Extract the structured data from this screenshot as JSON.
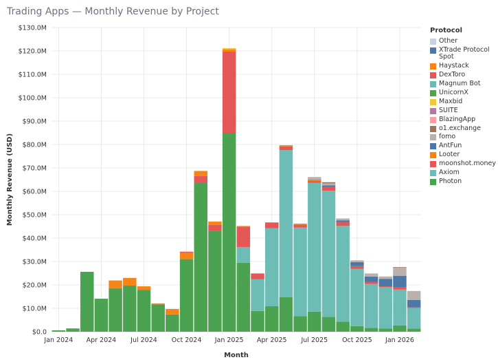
{
  "title": "Trading Apps — Monthly Revenue by Project",
  "chart_data": {
    "type": "bar",
    "stacked": true,
    "title": "Trading Apps — Monthly Revenue by Project",
    "xlabel": "Month",
    "ylabel": "Monthly Revenue (USD)",
    "ylim": [
      0,
      130
    ],
    "yunit": "USD millions",
    "yticks": [
      "$0.0",
      "$10.0M",
      "$20.0M",
      "$30.0M",
      "$40.0M",
      "$50.0M",
      "$60.0M",
      "$70.0M",
      "$80.0M",
      "$90.0M",
      "$100.0M",
      "$110.0M",
      "$120.0M",
      "$130.0M"
    ],
    "xticks": [
      {
        "month": "2024-01",
        "label": "Jan 2024"
      },
      {
        "month": "2024-04",
        "label": "Apr 2024"
      },
      {
        "month": "2024-07",
        "label": "Jul 2024"
      },
      {
        "month": "2024-10",
        "label": "Oct 2024"
      },
      {
        "month": "2025-01",
        "label": "Jan 2025"
      },
      {
        "month": "2025-04",
        "label": "Apr 2025"
      },
      {
        "month": "2025-07",
        "label": "Jul 2025"
      },
      {
        "month": "2025-10",
        "label": "Oct 2025"
      },
      {
        "month": "2026-01",
        "label": "Jan 2026"
      }
    ],
    "grid": true,
    "legend_title": "Protocol",
    "legend_placement": "right",
    "categories": [
      "2024-01",
      "2024-02",
      "2024-03",
      "2024-04",
      "2024-05",
      "2024-06",
      "2024-07",
      "2024-08",
      "2024-09",
      "2024-10",
      "2024-11",
      "2024-12",
      "2025-01",
      "2025-02",
      "2025-03",
      "2025-04",
      "2025-05",
      "2025-06",
      "2025-07",
      "2025-08",
      "2025-09",
      "2025-10",
      "2025-11",
      "2025-12",
      "2026-01",
      "2026-02"
    ],
    "series": [
      {
        "name": "Photon",
        "color": "#4ba351",
        "values": [
          0.6,
          1.4,
          25.6,
          14.1,
          18.6,
          19.7,
          17.8,
          11.6,
          7.4,
          31.0,
          63.8,
          43.2,
          85.0,
          29.5,
          8.9,
          10.9,
          14.8,
          6.7,
          8.6,
          6.3,
          4.3,
          2.4,
          1.6,
          1.4,
          2.7,
          1.3
        ]
      },
      {
        "name": "Axiom",
        "color": "#6dbdb6",
        "values": [
          0,
          0,
          0,
          0,
          0,
          0,
          0,
          0,
          0,
          0,
          0,
          0,
          0,
          6.7,
          13.5,
          33.3,
          62.8,
          37.8,
          55.0,
          53.9,
          40.9,
          24.5,
          18.8,
          17.6,
          15.3,
          8.9
        ]
      },
      {
        "name": "moonshot.money",
        "color": "#e45756",
        "values": [
          0,
          0,
          0,
          0,
          0,
          0,
          0,
          0,
          0,
          0,
          2.7,
          2.5,
          34.7,
          8.5,
          2.5,
          2.5,
          1.6,
          1.2,
          0.8,
          1.7,
          1.7,
          1.1,
          0.8,
          0.4,
          1.0,
          0.2
        ]
      },
      {
        "name": "Looter",
        "color": "#f58518",
        "values": [
          0,
          0,
          0,
          0,
          3.3,
          3.3,
          1.6,
          0.5,
          2.3,
          2.7,
          2.2,
          1.4,
          1.0,
          0.5,
          0,
          0,
          0.5,
          0.5,
          0.6,
          0,
          0,
          0,
          0,
          0,
          0,
          0
        ]
      },
      {
        "name": "AntFun",
        "color": "#4c78a8",
        "values": [
          0,
          0,
          0,
          0,
          0,
          0,
          0,
          0,
          0,
          0,
          0,
          0,
          0,
          0,
          0,
          0,
          0,
          0,
          0,
          0.6,
          0.7,
          1.7,
          2.4,
          3.2,
          4.9,
          3.2
        ]
      },
      {
        "name": "fomo",
        "color": "#bab0ac",
        "values": [
          0,
          0,
          0,
          0,
          0,
          0,
          0,
          0,
          0,
          0,
          0,
          0,
          0,
          0,
          0,
          0,
          0,
          0,
          1.1,
          0.9,
          0.8,
          0.8,
          1.3,
          1.0,
          3.5,
          3.8
        ]
      },
      {
        "name": "o1.exchange",
        "color": "#9d755d",
        "values": [
          0,
          0,
          0,
          0,
          0,
          0,
          0,
          0,
          0,
          0,
          0,
          0,
          0,
          0,
          0,
          0,
          0,
          0,
          0,
          0.5,
          0,
          0,
          0,
          0,
          0.2,
          0
        ]
      },
      {
        "name": "BlazingApp",
        "color": "#ff9da6",
        "values": [
          0,
          0,
          0,
          0,
          0,
          0,
          0,
          0,
          0,
          0,
          0,
          0,
          0,
          0,
          0,
          0,
          0,
          0,
          0,
          0,
          0,
          0,
          0,
          0,
          0,
          0
        ]
      },
      {
        "name": "SUITE",
        "color": "#b279a2",
        "values": [
          0,
          0,
          0,
          0,
          0,
          0,
          0,
          0,
          0,
          0,
          0,
          0,
          0,
          0,
          0,
          0,
          0,
          0,
          0,
          0,
          0,
          0,
          0,
          0,
          0,
          0
        ]
      },
      {
        "name": "Maxbid",
        "color": "#eeca3b",
        "values": [
          0,
          0,
          0,
          0,
          0,
          0,
          0,
          0,
          0,
          0,
          0,
          0,
          0.5,
          0,
          0,
          0,
          0,
          0,
          0,
          0,
          0,
          0,
          0,
          0,
          0,
          0
        ]
      },
      {
        "name": "UnicornX",
        "color": "#54a24b",
        "values": [
          0,
          0,
          0,
          0,
          0,
          0,
          0,
          0,
          0,
          0,
          0,
          0,
          0,
          0,
          0,
          0,
          0,
          0,
          0,
          0,
          0,
          0,
          0,
          0,
          0,
          0
        ]
      },
      {
        "name": "Magnum Bot",
        "color": "#72b7b2",
        "values": [
          0,
          0,
          0,
          0,
          0,
          0,
          0,
          0,
          0,
          0,
          0,
          0,
          0,
          0,
          0,
          0,
          0,
          0,
          0,
          0,
          0,
          0,
          0,
          0,
          0,
          0
        ]
      },
      {
        "name": "DexToro",
        "color": "#e45756",
        "values": [
          0,
          0,
          0,
          0,
          0,
          0,
          0,
          0,
          0,
          0.5,
          0,
          0,
          0,
          0,
          0,
          0,
          0,
          0,
          0,
          0,
          0,
          0,
          0,
          0,
          0,
          0
        ]
      },
      {
        "name": "Haystack",
        "color": "#f58518",
        "values": [
          0,
          0,
          0,
          0,
          0,
          0,
          0,
          0,
          0,
          0,
          0,
          0,
          0,
          0,
          0,
          0,
          0,
          0,
          0,
          0,
          0,
          0,
          0,
          0,
          0,
          0
        ]
      },
      {
        "name": "XTrade Protocol Spot",
        "color": "#4c78a8",
        "values": [
          0,
          0,
          0,
          0,
          0,
          0,
          0,
          0,
          0,
          0,
          0,
          0,
          0,
          0,
          0,
          0,
          0,
          0,
          0,
          0,
          0,
          0,
          0,
          0,
          0,
          0
        ]
      },
      {
        "name": "Other",
        "color": "#c9d2e3",
        "values": [
          0,
          0,
          0,
          0,
          0,
          0,
          0,
          0,
          0,
          0,
          0,
          0,
          0,
          0,
          0,
          0,
          0,
          0,
          0,
          0,
          0,
          0,
          0,
          0,
          0,
          0
        ]
      }
    ]
  }
}
